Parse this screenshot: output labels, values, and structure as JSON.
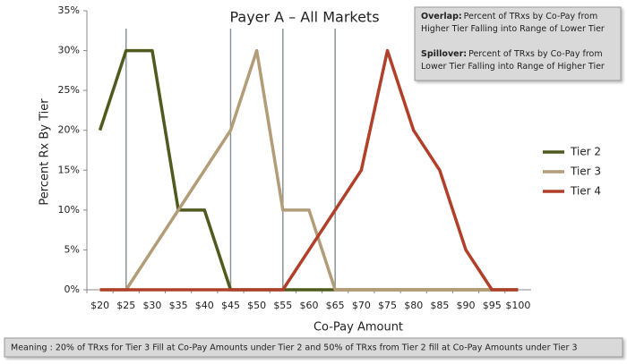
{
  "chart_data": {
    "type": "line",
    "title": "Payer A – All Markets",
    "x_label": "Co-Pay Amount",
    "y_label": "Percent Rx By Tier",
    "categories": [
      "$20",
      "$25",
      "$30",
      "$35",
      "$40",
      "$45",
      "$50",
      "$55",
      "$60",
      "$65",
      "$70",
      "$75",
      "$80",
      "$85",
      "$90",
      "$95",
      "$100"
    ],
    "series": [
      {
        "name": "Tier 2",
        "color": "#4f5a1e",
        "values": [
          20,
          30,
          30,
          10,
          10,
          0,
          0,
          0,
          0,
          0,
          0,
          0,
          0,
          0,
          0,
          0,
          0
        ]
      },
      {
        "name": "Tier 3",
        "color": "#b39c78",
        "values": [
          0,
          0,
          5,
          10,
          15,
          20,
          30,
          10,
          10,
          0,
          0,
          0,
          0,
          0,
          0,
          0,
          0
        ]
      },
      {
        "name": "Tier 4",
        "color": "#b0402a",
        "values": [
          0,
          0,
          0,
          0,
          0,
          0,
          0,
          0,
          5,
          10,
          15,
          30,
          20,
          15,
          5,
          0,
          0
        ]
      }
    ],
    "ylim": [
      0,
      35
    ],
    "yticks": [
      {
        "value": 0,
        "label": "0%"
      },
      {
        "value": 5,
        "label": "5%"
      },
      {
        "value": 10,
        "label": "10%"
      },
      {
        "value": 15,
        "label": "15%"
      },
      {
        "value": 20,
        "label": "20%"
      },
      {
        "value": 25,
        "label": "25%"
      },
      {
        "value": 30,
        "label": "30%"
      },
      {
        "value": 35,
        "label": "35%"
      }
    ],
    "reference_lines": [
      "$25",
      "$45",
      "$55",
      "$65"
    ],
    "legend": "right",
    "notes": [
      {
        "label": "Overlap:",
        "lines": [
          "Percent of TRxs by Co-Pay from",
          "Higher Tier Falling into Range of Lower Tier"
        ]
      },
      {
        "label": "Spillover:",
        "lines": [
          "Percent of TRxs by Co-Pay from",
          "Lower Tier Falling into Range of Higher Tier"
        ]
      }
    ],
    "footer": "Meaning : 20% of TRxs for Tier 3 Fill at Co-Pay Amounts under Tier 2  and 50% of TRxs from Tier 2 fill at Co-Pay Amounts under Tier 3"
  }
}
